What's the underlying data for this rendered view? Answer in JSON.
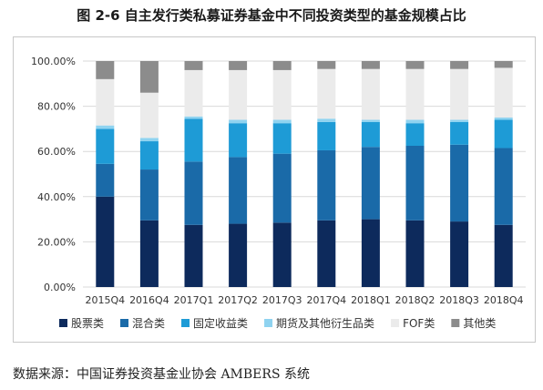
{
  "title": "图 2-6  自主发行类私募证券基金中不同投资类型的基金规模占比",
  "source": "数据来源：中国证券投资基金业协会 AMBERS 系统",
  "chart_data": {
    "type": "bar",
    "stacked": true,
    "categories": [
      "2015Q4",
      "2016Q4",
      "2017Q1",
      "2017Q2",
      "2017Q3",
      "2017Q4",
      "2018Q1",
      "2018Q2",
      "2018Q3",
      "2018Q4"
    ],
    "y_ticks": [
      "0.00%",
      "20.00%",
      "40.00%",
      "60.00%",
      "80.00%",
      "100.00%"
    ],
    "ylim": [
      0,
      100
    ],
    "grid": true,
    "legend_position": "bottom",
    "series": [
      {
        "name": "股票类",
        "color": "#0d2a5c",
        "values": [
          40,
          29.5,
          27.5,
          28,
          28.5,
          29.5,
          30,
          29.5,
          29,
          27.5
        ]
      },
      {
        "name": "混合类",
        "color": "#1a6aa8",
        "values": [
          14.5,
          22.5,
          28,
          29.5,
          30.5,
          31,
          32,
          33,
          34,
          34
        ]
      },
      {
        "name": "固定收益类",
        "color": "#1e9bd6",
        "values": [
          15.5,
          12.5,
          19,
          15,
          13.5,
          12.5,
          11,
          10,
          10,
          12.5
        ]
      },
      {
        "name": "期货及其他衍生品类",
        "color": "#8fd3f0",
        "values": [
          1.5,
          1.5,
          1,
          1.5,
          1.5,
          1.5,
          1,
          1.5,
          1,
          1
        ]
      },
      {
        "name": "FOF类",
        "color": "#ebebeb",
        "values": [
          20.5,
          20,
          20.5,
          22,
          22,
          22,
          22.5,
          22.5,
          22.5,
          22
        ]
      },
      {
        "name": "其他类",
        "color": "#8c8c8c",
        "values": [
          8,
          14,
          4,
          4,
          4,
          3.5,
          3.5,
          3.5,
          3.5,
          3
        ]
      }
    ]
  }
}
